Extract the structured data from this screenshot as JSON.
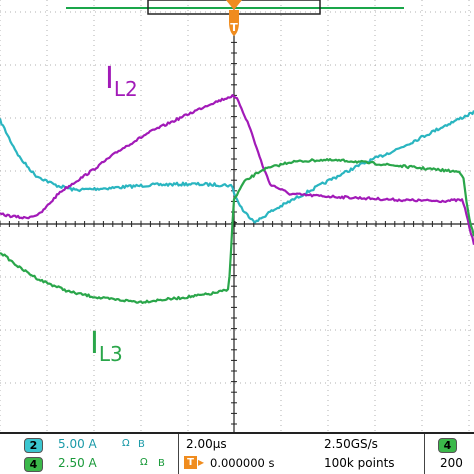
{
  "colors": {
    "ch1": "#2ab5c0",
    "ch2": "#a21ab8",
    "ch3": "#2aa64a",
    "trigger": "#f08c1e",
    "grid": "#b0b0b0",
    "axis": "#222222",
    "topbar": "#1aa64a"
  },
  "trigger": {
    "marker": "T"
  },
  "traces": {
    "l2": {
      "label_main": "I",
      "label_sub": "L2"
    },
    "l3": {
      "label_main": "I",
      "label_sub": "L3"
    }
  },
  "status": {
    "ch_a": {
      "number": "2",
      "scale": "5.00 A",
      "coupling": "Ω",
      "bw": "B",
      "color": "#3bc6d0"
    },
    "ch_b": {
      "number": "4",
      "scale": "2.50 A",
      "coupling": "Ω",
      "bw": "B",
      "color": "#3bb84a"
    },
    "timebase": "2.00µs",
    "sample_rate": "2.50GS/s",
    "trigger_offset": "0.000000 s",
    "record_length": "100k points",
    "trig_ch_number": "4",
    "trig_level": "200"
  }
}
